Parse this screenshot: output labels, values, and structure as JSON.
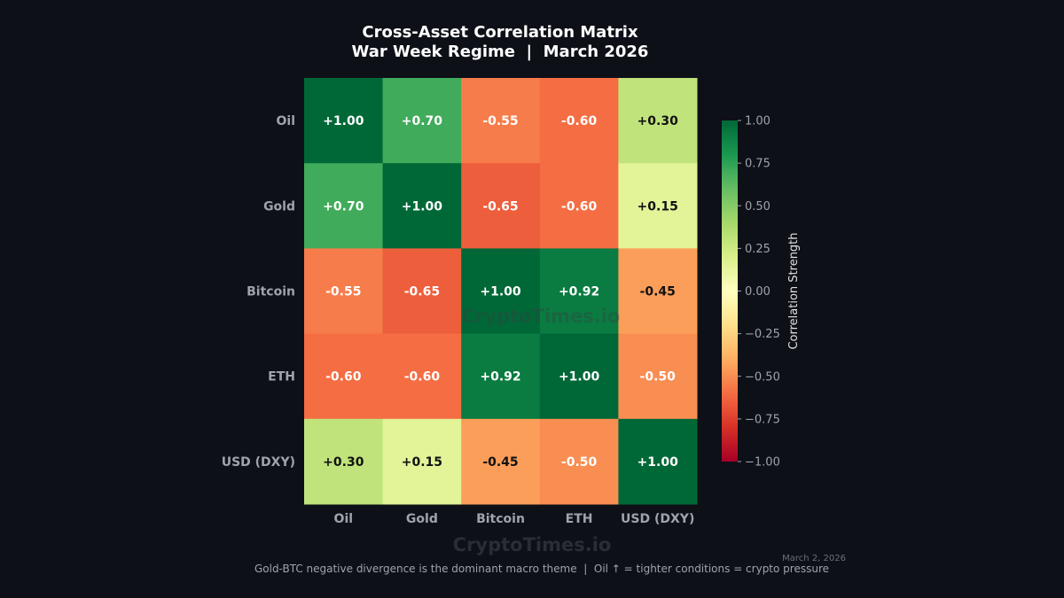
{
  "chart_data": {
    "type": "heatmap",
    "title": "Cross-Asset Correlation Matrix",
    "subtitle": "War Week Regime  |  March 2026",
    "rows": [
      "Oil",
      "Gold",
      "Bitcoin",
      "ETH",
      "USD (DXY)"
    ],
    "columns": [
      "Oil",
      "Gold",
      "Bitcoin",
      "ETH",
      "USD (DXY)"
    ],
    "values": [
      [
        1.0,
        0.7,
        -0.55,
        -0.6,
        0.3
      ],
      [
        0.7,
        1.0,
        -0.65,
        -0.6,
        0.15
      ],
      [
        -0.55,
        -0.65,
        1.0,
        0.92,
        -0.45
      ],
      [
        -0.6,
        -0.6,
        0.92,
        1.0,
        -0.5
      ],
      [
        0.3,
        0.15,
        -0.45,
        -0.5,
        1.0
      ]
    ],
    "labels": [
      [
        "+1.00",
        "+0.70",
        "-0.55",
        "-0.60",
        "+0.30"
      ],
      [
        "+0.70",
        "+1.00",
        "-0.65",
        "-0.60",
        "+0.15"
      ],
      [
        "-0.55",
        "-0.65",
        "+1.00",
        "+0.92",
        "-0.45"
      ],
      [
        "-0.60",
        "-0.60",
        "+0.92",
        "+1.00",
        "-0.50"
      ],
      [
        "+0.30",
        "+0.15",
        "-0.45",
        "-0.50",
        "+1.00"
      ]
    ],
    "colormap": "RdYlGn",
    "vlim": [
      -1,
      1
    ],
    "colorbar": {
      "label": "Correlation Strength",
      "ticks": [
        1.0,
        0.75,
        0.5,
        0.25,
        0.0,
        -0.25,
        -0.5,
        -0.75,
        -1.0
      ],
      "tick_labels": [
        "1.00",
        "0.75",
        "0.50",
        "0.25",
        "0.00",
        "−0.25",
        "−0.50",
        "−0.75",
        "−1.00"
      ]
    }
  },
  "watermark": "CryptoTimes.io",
  "date": "March 2, 2026",
  "footnote": "Gold-BTC negative divergence is the dominant macro theme  |  Oil ↑ = tighter conditions = crypto pressure"
}
